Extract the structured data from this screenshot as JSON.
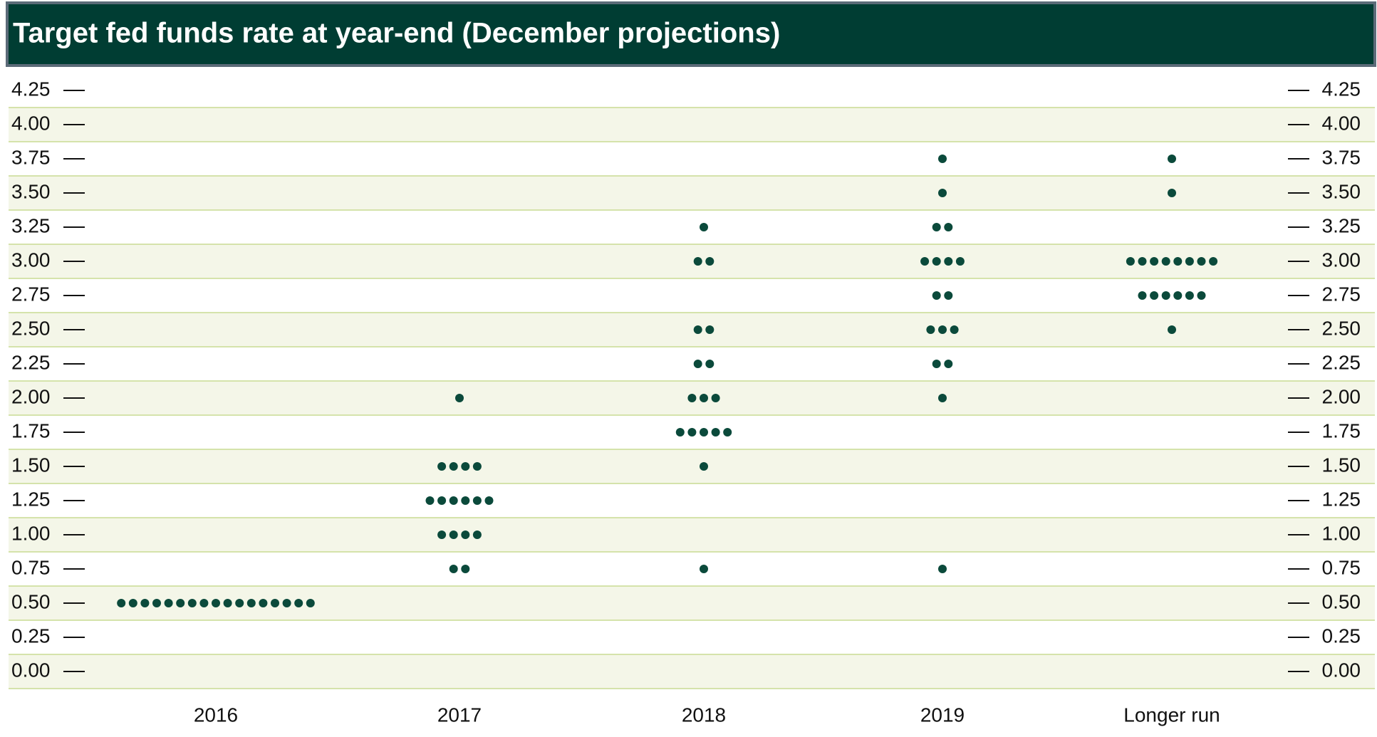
{
  "chart_data": {
    "type": "dot",
    "title": "Target fed funds rate at year-end (December projections)",
    "categories": [
      "2016",
      "2017",
      "2018",
      "2019",
      "Longer run"
    ],
    "values": [
      [
        0.5,
        0.5,
        0.5,
        0.5,
        0.5,
        0.5,
        0.5,
        0.5,
        0.5,
        0.5,
        0.5,
        0.5,
        0.5,
        0.5,
        0.5,
        0.5,
        0.5
      ],
      [
        2.0,
        1.5,
        1.5,
        1.5,
        1.5,
        1.25,
        1.25,
        1.25,
        1.25,
        1.25,
        1.25,
        1.0,
        1.0,
        1.0,
        1.0,
        0.75,
        0.75
      ],
      [
        3.25,
        3.0,
        3.0,
        2.5,
        2.5,
        2.25,
        2.25,
        2.0,
        2.0,
        2.0,
        1.75,
        1.75,
        1.75,
        1.75,
        1.75,
        1.5,
        0.75
      ],
      [
        3.75,
        3.5,
        3.25,
        3.25,
        3.0,
        3.0,
        3.0,
        3.0,
        2.75,
        2.75,
        2.5,
        2.5,
        2.5,
        2.25,
        2.25,
        2.0,
        0.75
      ],
      [
        3.75,
        3.5,
        3.0,
        3.0,
        3.0,
        3.0,
        3.0,
        3.0,
        3.0,
        3.0,
        2.75,
        2.75,
        2.75,
        2.75,
        2.75,
        2.75,
        2.5
      ]
    ],
    "color": "#0b4a3b",
    "ylim": [
      -0.125,
      4.375
    ],
    "yticks": [
      {
        "value": 0,
        "label": "0.00"
      },
      0.25,
      {
        "value": 0.5,
        "label": "0.50"
      },
      0.75,
      {
        "value": 1,
        "label": "1.00"
      },
      1.25,
      {
        "value": 1.5,
        "label": "1.50"
      },
      1.75,
      {
        "value": 2,
        "label": "2.00"
      },
      2.25,
      {
        "value": 2.5,
        "label": "2.50"
      },
      2.75,
      {
        "value": 3,
        "label": "3.00"
      },
      3.25,
      {
        "value": 3.5,
        "label": "3.50"
      },
      3.75,
      {
        "value": 4,
        "label": "4.00"
      },
      4.25
    ],
    "grid": true
  }
}
